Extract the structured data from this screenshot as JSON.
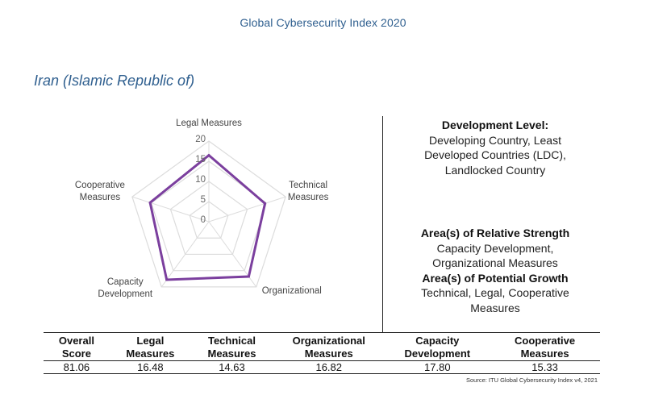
{
  "header": {
    "title": "Global Cybersecurity Index 2020"
  },
  "country": "Iran (Islamic Republic of)",
  "chart_data": {
    "type": "radar",
    "axes": [
      "Legal Measures",
      "Technical Measures",
      "Organizational",
      "Capacity Development",
      "Cooperative Measures"
    ],
    "axis_label_lines": [
      [
        "Legal Measures"
      ],
      [
        "Technical",
        "Measures"
      ],
      [
        "Organizational"
      ],
      [
        "Capacity",
        "Development"
      ],
      [
        "Cooperative",
        "Measures"
      ]
    ],
    "ticks": [
      "0",
      "5",
      "10",
      "15",
      "20"
    ],
    "rlim": [
      0,
      20
    ],
    "values": [
      16.48,
      14.63,
      16.82,
      17.8,
      15.33
    ],
    "grid": true,
    "series_color": "#7b3f9e",
    "grid_color": "#dcdcdc"
  },
  "development": {
    "heading": "Development Level:",
    "lines": [
      "Developing Country, Least",
      "Developed Countries (LDC),",
      "Landlocked Country"
    ]
  },
  "strength": {
    "heading": "Area(s) of Relative Strength",
    "lines": [
      "Capacity Development,",
      "Organizational Measures"
    ]
  },
  "growth": {
    "heading": "Area(s) of Potential Growth",
    "lines": [
      "Technical, Legal, Cooperative",
      "Measures"
    ]
  },
  "table": {
    "headers": [
      [
        "Overall",
        "Score"
      ],
      [
        "Legal",
        "Measures"
      ],
      [
        "Technical",
        "Measures"
      ],
      [
        "Organizational",
        "Measures"
      ],
      [
        "Capacity",
        "Development"
      ],
      [
        "Cooperative",
        "Measures"
      ]
    ],
    "values": [
      "81.06",
      "16.48",
      "14.63",
      "16.82",
      "17.80",
      "15.33"
    ]
  },
  "source": "Source: ITU Global Cybersecurity Index v4, 2021"
}
